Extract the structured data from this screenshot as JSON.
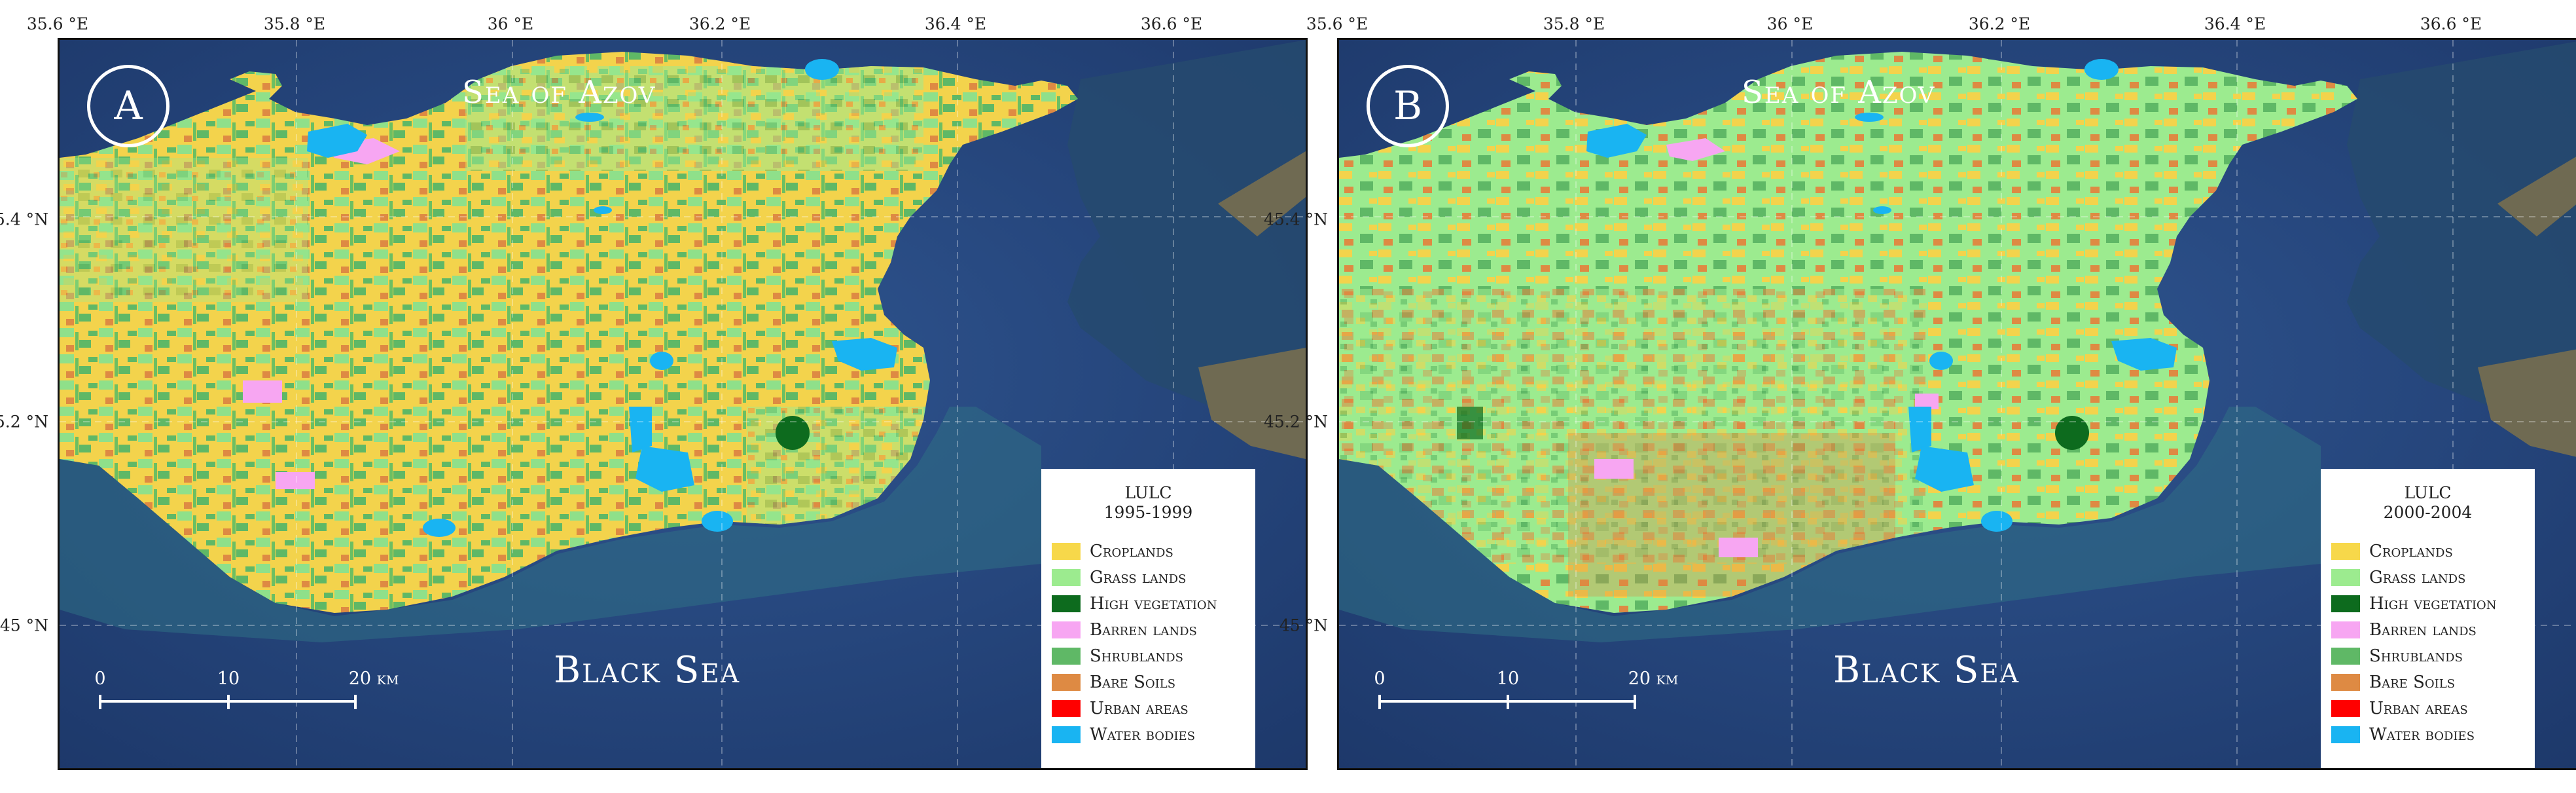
{
  "panels": [
    {
      "letter": "A",
      "sea_north": "Sea of Azov",
      "sea_south": "Black Sea",
      "legend": {
        "title": "LULC",
        "period": "1995-1999"
      },
      "dominant_class": "croplands"
    },
    {
      "letter": "B",
      "sea_north": "Sea of Azov",
      "sea_south": "Black Sea",
      "legend": {
        "title": "LULC",
        "period": "2000-2004"
      },
      "dominant_class": "grasslands"
    }
  ],
  "longitude_ticks": [
    "35.6 °E",
    "35.8 °E",
    "36 °E",
    "36.2 °E",
    "36.4 °E",
    "36.6 °E"
  ],
  "latitude_ticks": [
    "45.4 °N",
    "45.2 °N",
    "45 °N"
  ],
  "scalebar": {
    "labels": [
      "0",
      "10",
      "20 km"
    ]
  },
  "legend_classes": [
    {
      "label": "Croplands",
      "color": "#f7d84a"
    },
    {
      "label": "Grass lands",
      "color": "#9ceb8f"
    },
    {
      "label": "High vegetation",
      "color": "#0d6b1e"
    },
    {
      "label": "Barren lands",
      "color": "#f7a6f2"
    },
    {
      "label": "Shrublands",
      "color": "#5fb866"
    },
    {
      "label": "Bare Soils",
      "color": "#de8a43"
    },
    {
      "label": "Urban areas",
      "color": "#ff0000"
    },
    {
      "label": "Water bodies",
      "color": "#19b4f2"
    }
  ],
  "colors": {
    "sea": "#2a4a82",
    "sea_dark": "#1b3566",
    "coast_water": "#2e6f82",
    "land_neighbor": "#6f6a52"
  }
}
